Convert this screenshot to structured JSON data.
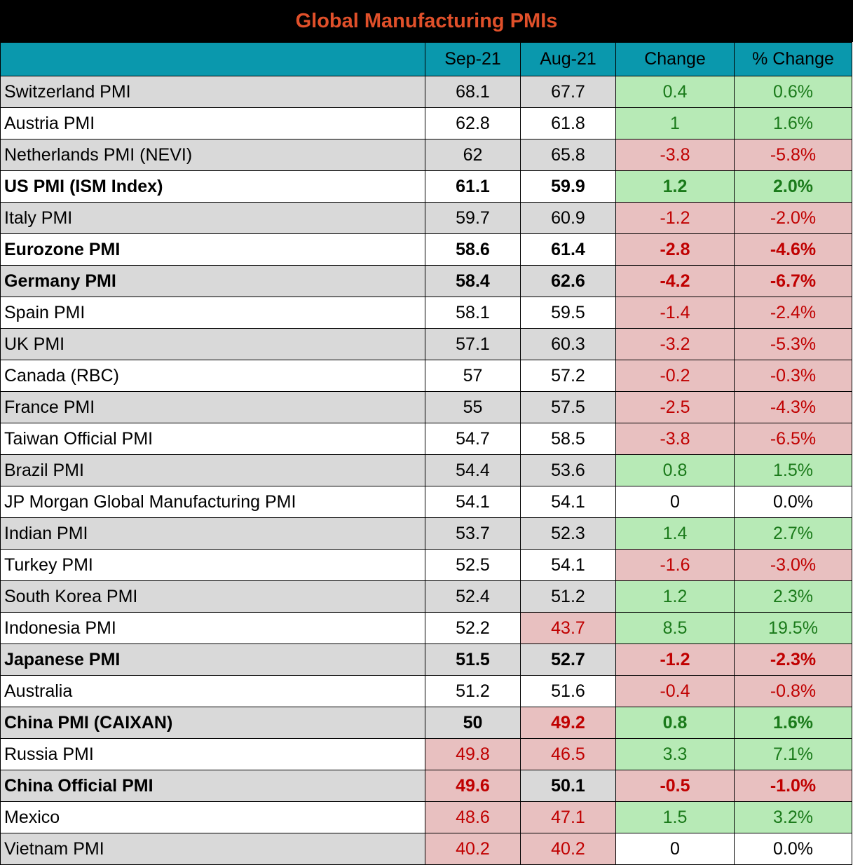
{
  "title": "Global Manufacturing PMIs",
  "colors": {
    "title_bg": "#000000",
    "title_text": "#e0502a",
    "header_bg": "#0a98ad",
    "row_shade": "#d9d9d9",
    "positive_bg": "#b7eab6",
    "positive_text": "#1a7a1a",
    "negative_bg": "#e8c0c0",
    "negative_text": "#c00000"
  },
  "headers": [
    "",
    "Sep-21",
    "Aug-21",
    "Change",
    "% Change"
  ],
  "rows": [
    {
      "name": "Switzerland PMI",
      "sep": "68.1",
      "aug": "67.7",
      "change": "0.4",
      "pct": "0.6%",
      "bold": false,
      "shade": true,
      "sep_flag": "",
      "aug_flag": "",
      "chg_flag": "pos"
    },
    {
      "name": "Austria PMI",
      "sep": "62.8",
      "aug": "61.8",
      "change": "1",
      "pct": "1.6%",
      "bold": false,
      "shade": false,
      "sep_flag": "",
      "aug_flag": "",
      "chg_flag": "pos"
    },
    {
      "name": "Netherlands PMI (NEVI)",
      "sep": "62",
      "aug": "65.8",
      "change": "-3.8",
      "pct": "-5.8%",
      "bold": false,
      "shade": true,
      "sep_flag": "",
      "aug_flag": "",
      "chg_flag": "neg"
    },
    {
      "name": "US PMI (ISM Index)",
      "sep": "61.1",
      "aug": "59.9",
      "change": "1.2",
      "pct": "2.0%",
      "bold": true,
      "shade": false,
      "sep_flag": "",
      "aug_flag": "",
      "chg_flag": "pos"
    },
    {
      "name": "Italy PMI",
      "sep": "59.7",
      "aug": "60.9",
      "change": "-1.2",
      "pct": "-2.0%",
      "bold": false,
      "shade": true,
      "sep_flag": "",
      "aug_flag": "",
      "chg_flag": "neg"
    },
    {
      "name": "Eurozone PMI",
      "sep": "58.6",
      "aug": "61.4",
      "change": "-2.8",
      "pct": "-4.6%",
      "bold": true,
      "shade": false,
      "sep_flag": "",
      "aug_flag": "",
      "chg_flag": "neg"
    },
    {
      "name": "Germany PMI",
      "sep": "58.4",
      "aug": "62.6",
      "change": "-4.2",
      "pct": "-6.7%",
      "bold": true,
      "shade": true,
      "sep_flag": "",
      "aug_flag": "",
      "chg_flag": "neg"
    },
    {
      "name": "Spain PMI",
      "sep": "58.1",
      "aug": "59.5",
      "change": "-1.4",
      "pct": "-2.4%",
      "bold": false,
      "shade": false,
      "sep_flag": "",
      "aug_flag": "",
      "chg_flag": "neg"
    },
    {
      "name": "UK PMI",
      "sep": "57.1",
      "aug": "60.3",
      "change": "-3.2",
      "pct": "-5.3%",
      "bold": false,
      "shade": true,
      "sep_flag": "",
      "aug_flag": "",
      "chg_flag": "neg"
    },
    {
      "name": "Canada (RBC)",
      "sep": "57",
      "aug": "57.2",
      "change": "-0.2",
      "pct": "-0.3%",
      "bold": false,
      "shade": false,
      "sep_flag": "",
      "aug_flag": "",
      "chg_flag": "neg"
    },
    {
      "name": "France PMI",
      "sep": "55",
      "aug": "57.5",
      "change": "-2.5",
      "pct": "-4.3%",
      "bold": false,
      "shade": true,
      "sep_flag": "",
      "aug_flag": "",
      "chg_flag": "neg"
    },
    {
      "name": "Taiwan Official PMI",
      "sep": "54.7",
      "aug": "58.5",
      "change": "-3.8",
      "pct": "-6.5%",
      "bold": false,
      "shade": false,
      "sep_flag": "",
      "aug_flag": "",
      "chg_flag": "neg"
    },
    {
      "name": "Brazil PMI",
      "sep": "54.4",
      "aug": "53.6",
      "change": "0.8",
      "pct": "1.5%",
      "bold": false,
      "shade": true,
      "sep_flag": "",
      "aug_flag": "",
      "chg_flag": "pos"
    },
    {
      "name": "JP Morgan Global Manufacturing PMI",
      "sep": "54.1",
      "aug": "54.1",
      "change": "0",
      "pct": "0.0%",
      "bold": false,
      "shade": false,
      "sep_flag": "",
      "aug_flag": "",
      "chg_flag": "neu"
    },
    {
      "name": "Indian PMI",
      "sep": "53.7",
      "aug": "52.3",
      "change": "1.4",
      "pct": "2.7%",
      "bold": false,
      "shade": true,
      "sep_flag": "",
      "aug_flag": "",
      "chg_flag": "pos"
    },
    {
      "name": "Turkey PMI",
      "sep": "52.5",
      "aug": "54.1",
      "change": "-1.6",
      "pct": "-3.0%",
      "bold": false,
      "shade": false,
      "sep_flag": "",
      "aug_flag": "",
      "chg_flag": "neg"
    },
    {
      "name": "South Korea PMI",
      "sep": "52.4",
      "aug": "51.2",
      "change": "1.2",
      "pct": "2.3%",
      "bold": false,
      "shade": true,
      "sep_flag": "",
      "aug_flag": "",
      "chg_flag": "pos"
    },
    {
      "name": "Indonesia PMI",
      "sep": "52.2",
      "aug": "43.7",
      "change": "8.5",
      "pct": "19.5%",
      "bold": false,
      "shade": false,
      "sep_flag": "",
      "aug_flag": "neg",
      "chg_flag": "pos"
    },
    {
      "name": "Japanese PMI",
      "sep": "51.5",
      "aug": "52.7",
      "change": "-1.2",
      "pct": "-2.3%",
      "bold": true,
      "shade": true,
      "sep_flag": "",
      "aug_flag": "",
      "chg_flag": "neg"
    },
    {
      "name": "Australia",
      "sep": "51.2",
      "aug": "51.6",
      "change": "-0.4",
      "pct": "-0.8%",
      "bold": false,
      "shade": false,
      "sep_flag": "",
      "aug_flag": "",
      "chg_flag": "neg"
    },
    {
      "name": "China PMI (CAIXAN)",
      "sep": "50",
      "aug": "49.2",
      "change": "0.8",
      "pct": "1.6%",
      "bold": true,
      "shade": true,
      "sep_flag": "",
      "aug_flag": "neg",
      "chg_flag": "pos"
    },
    {
      "name": "Russia PMI",
      "sep": "49.8",
      "aug": "46.5",
      "change": "3.3",
      "pct": "7.1%",
      "bold": false,
      "shade": false,
      "sep_flag": "neg",
      "aug_flag": "neg",
      "chg_flag": "pos"
    },
    {
      "name": "China Official PMI",
      "sep": "49.6",
      "aug": "50.1",
      "change": "-0.5",
      "pct": "-1.0%",
      "bold": true,
      "shade": true,
      "sep_flag": "neg",
      "aug_flag": "",
      "chg_flag": "neg"
    },
    {
      "name": "Mexico",
      "sep": "48.6",
      "aug": "47.1",
      "change": "1.5",
      "pct": "3.2%",
      "bold": false,
      "shade": false,
      "sep_flag": "neg",
      "aug_flag": "neg",
      "chg_flag": "pos"
    },
    {
      "name": "Vietnam PMI",
      "sep": "40.2",
      "aug": "40.2",
      "change": "0",
      "pct": "0.0%",
      "bold": false,
      "shade": true,
      "sep_flag": "neg",
      "aug_flag": "neg",
      "chg_flag": "neu"
    }
  ]
}
